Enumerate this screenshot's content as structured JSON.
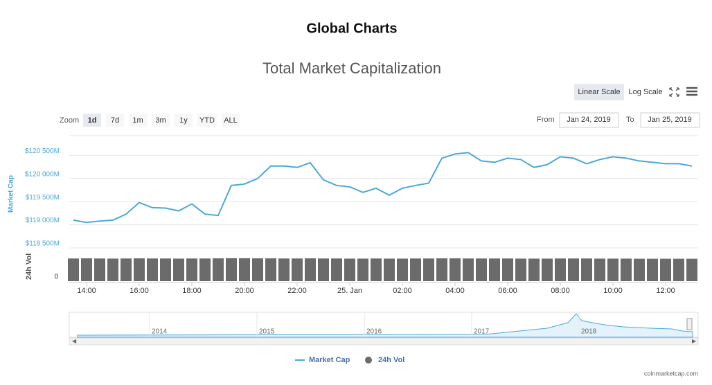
{
  "page_title": "Global Charts",
  "chart_data": {
    "type": "line",
    "title": "Total Market Capitalization",
    "scale_buttons": [
      "Linear Scale",
      "Log Scale"
    ],
    "zoom_label": "Zoom",
    "zoom_buttons": [
      "1d",
      "7d",
      "1m",
      "3m",
      "1y",
      "YTD",
      "ALL"
    ],
    "from_label": "From",
    "from_value": "Jan 24, 2019",
    "to_label": "To",
    "to_value": "Jan 25, 2019",
    "ylabel": "Market Cap",
    "y2label": "24h Vol",
    "categories": [
      null,
      "14:00",
      null,
      null,
      null,
      "16:00",
      null,
      null,
      null,
      "18:00",
      null,
      null,
      null,
      "20:00",
      null,
      null,
      null,
      "22:00",
      null,
      null,
      null,
      "25. Jan",
      null,
      null,
      null,
      "02:00",
      null,
      null,
      null,
      "04:00",
      null,
      null,
      null,
      "06:00",
      null,
      null,
      null,
      "08:00",
      null,
      null,
      null,
      "10:00",
      null,
      null,
      null,
      "12:00",
      null,
      null
    ],
    "series": [
      {
        "name": "Market Cap",
        "color": "#4aa8d8",
        "values": [
          119100,
          119050,
          119080,
          119100,
          119230,
          119480,
          119370,
          119360,
          119300,
          119450,
          119230,
          119200,
          119850,
          119880,
          120000,
          120270,
          120270,
          120240,
          120340,
          119970,
          119850,
          119820,
          119700,
          119790,
          119640,
          119790,
          119850,
          119900,
          120440,
          120530,
          120560,
          120380,
          120350,
          120440,
          120410,
          120240,
          120300,
          120470,
          120440,
          120320,
          120410,
          120470,
          120440,
          120380,
          120350,
          120320,
          120320,
          120270
        ]
      },
      {
        "name": "24h Vol",
        "color": "#6b6b6b",
        "axis": "y2",
        "values": [
          18000,
          18100,
          18000,
          17900,
          18000,
          18100,
          18000,
          18000,
          17900,
          18000,
          18000,
          18100,
          18200,
          18200,
          18100,
          18100,
          18000,
          18000,
          18100,
          18000,
          18000,
          17900,
          17900,
          18000,
          17900,
          17900,
          18000,
          18000,
          18100,
          18100,
          18000,
          18000,
          18000,
          18000,
          17900,
          17900,
          17900,
          18000,
          18000,
          18000,
          17900,
          17900,
          17900,
          17800,
          17800,
          17800,
          17800,
          17800
        ]
      }
    ],
    "ylim": [
      118500,
      121000
    ],
    "yticks": [
      {
        "value": 118500,
        "label": "$118 500M"
      },
      {
        "value": 119000,
        "label": "$119 000M"
      },
      {
        "value": 119500,
        "label": "$119 500M"
      },
      {
        "value": 120000,
        "label": "$120 000M"
      },
      {
        "value": 120500,
        "label": "$120 500M"
      }
    ],
    "y2lim": [
      0,
      22000
    ],
    "y2ticks": [
      0
    ],
    "grid": true,
    "navigator_labels": [
      "2014",
      "2015",
      "2016",
      "2017",
      "2018"
    ],
    "credit": "coinmarketcap.com"
  }
}
